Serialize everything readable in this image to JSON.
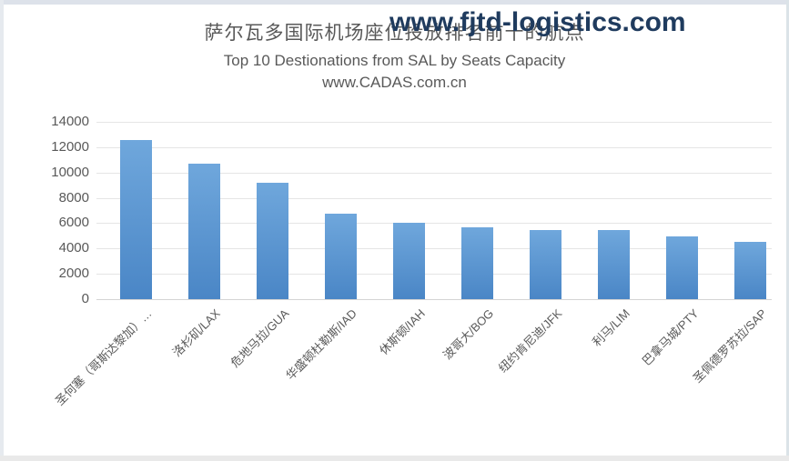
{
  "watermark": {
    "text": "www.fjtd-logistics.com",
    "color": "#1F3B5E"
  },
  "chart_data": {
    "type": "bar",
    "title": "萨尔瓦多国际机场座位投放排名前十的航点",
    "subtitle": "Top 10 Destionations from SAL by Seats Capacity",
    "source": "www.CADAS.com.cn",
    "categories": [
      "圣何塞（哥斯达黎加）…",
      "洛杉矶/LAX",
      "危地马拉/GUA",
      "华盛顿杜勒斯/IAD",
      "休斯顿/IAH",
      "波哥大/BOG",
      "纽约肯尼迪/JFK",
      "利马/LIM",
      "巴拿马城/PTY",
      "圣佩德罗苏拉/SAP"
    ],
    "values": [
      12600,
      10700,
      9200,
      6750,
      6000,
      5650,
      5450,
      5450,
      4950,
      4550
    ],
    "xlabel": "",
    "ylabel": "",
    "ylim": [
      0,
      14000
    ],
    "yticks": [
      14000,
      12000,
      10000,
      8000,
      6000,
      4000,
      2000,
      0
    ],
    "grid": true,
    "legend": false,
    "bar_color_top": "#6FA7DC",
    "bar_color_bottom": "#4A86C6",
    "text_color": "#595959",
    "gridline_color": "#E5E5E5",
    "axis_line_color": "#D4D4D4"
  }
}
